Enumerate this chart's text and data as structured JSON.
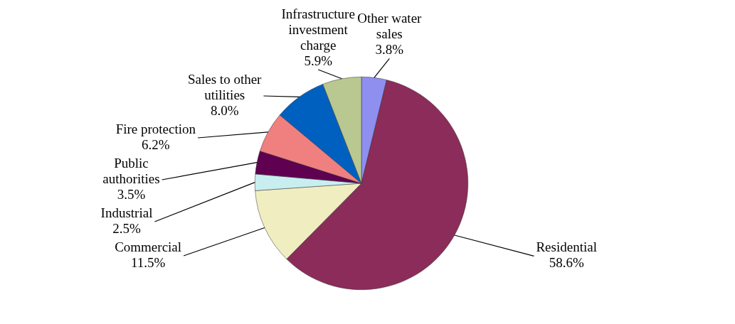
{
  "chart_data": {
    "type": "pie",
    "categories": [
      "Other water sales",
      "Residential",
      "Commercial",
      "Industrial",
      "Public authorities",
      "Fire protection",
      "Sales to other utilities",
      "Infrastructure investment charge"
    ],
    "values": [
      3.8,
      58.6,
      11.5,
      2.5,
      3.5,
      6.2,
      8.0,
      5.9
    ],
    "colors": [
      "#8f8ff0",
      "#8b2c5a",
      "#f0eec0",
      "#c8eef0",
      "#600050",
      "#f08080",
      "#0060c0",
      "#b8c890"
    ],
    "value_labels": [
      "3.8%",
      "58.6%",
      "11.5%",
      "2.5%",
      "3.5%",
      "6.2%",
      "8.0%",
      "5.9%"
    ]
  }
}
